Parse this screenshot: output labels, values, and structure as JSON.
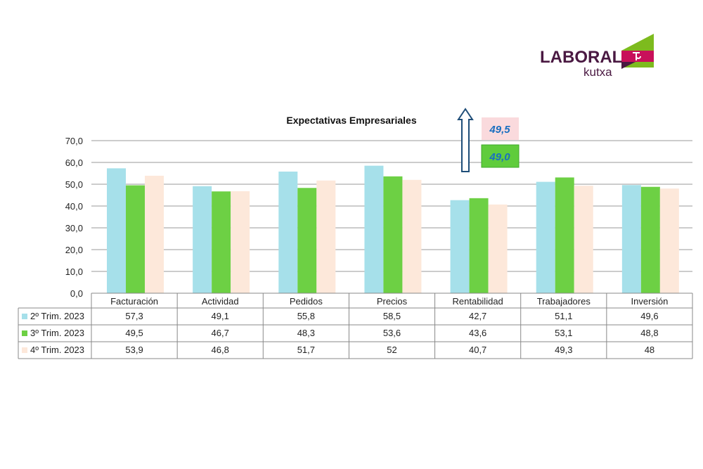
{
  "logo": {
    "text_main": "LABORAL",
    "text_sub": "kutxa",
    "colors": {
      "purple": "#4a1942",
      "magenta": "#c8105a",
      "green": "#7dbb1e"
    }
  },
  "callouts": [
    {
      "text": "49,5",
      "bg": "#fadadd",
      "color": "#1a6fc0"
    },
    {
      "text": "49,0",
      "bg": "#5fcc3c",
      "color": "#1a6fc0"
    }
  ],
  "chart_data": {
    "type": "bar",
    "title": "Expectativas Empresariales",
    "categories": [
      "Facturación",
      "Actividad",
      "Pedidos",
      "Precios",
      "Rentabilidad",
      "Trabajadores",
      "Inversión"
    ],
    "series": [
      {
        "name": "2º Trim. 2023",
        "color": "#a6e0ea",
        "values": [
          57.3,
          49.1,
          55.8,
          58.5,
          42.7,
          51.1,
          49.6
        ],
        "labels": [
          "57,3",
          "49,1",
          "55,8",
          "58,5",
          "42,7",
          "51,1",
          "49,6"
        ]
      },
      {
        "name": "3º Trim. 2023",
        "color": "#6dd044",
        "values": [
          49.5,
          46.7,
          48.3,
          53.6,
          43.6,
          53.1,
          48.8
        ],
        "labels": [
          "49,5",
          "46,7",
          "48,3",
          "53,6",
          "43,6",
          "53,1",
          "48,8"
        ]
      },
      {
        "name": "4º Trim. 2023",
        "color": "#fde8da",
        "values": [
          53.9,
          46.8,
          51.7,
          52,
          40.7,
          49.3,
          48
        ],
        "labels": [
          "53,9",
          "46,8",
          "51,7",
          "52",
          "40,7",
          "49,3",
          "48"
        ]
      }
    ],
    "yticks": [
      "0,0",
      "10,0",
      "20,0",
      "30,0",
      "40,0",
      "50,0",
      "60,0",
      "70,0"
    ],
    "ylim": [
      0,
      70
    ],
    "grid": true,
    "legend": "data-table"
  }
}
